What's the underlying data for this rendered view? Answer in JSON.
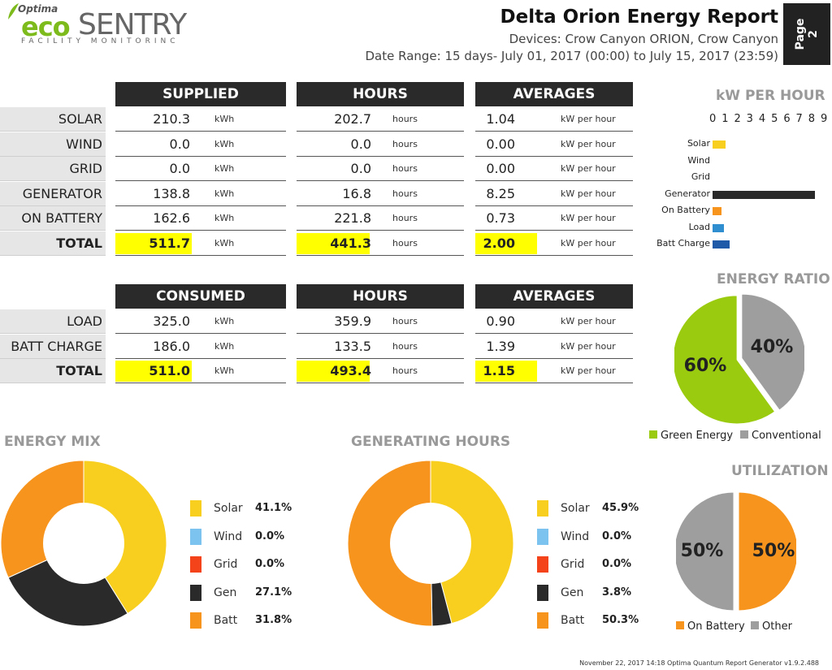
{
  "logo": {
    "optima": "Optima",
    "eco": "eco",
    "sentry": "SENTRY",
    "tagline": "FACILITY MONITORINC"
  },
  "header": {
    "title": "Delta Orion Energy Report",
    "devices": "Devices: Crow Canyon ORION, Crow Canyon",
    "date_range": "Date Range: 15 days- July 01, 2017 (00:00) to July 15, 2017 (23:59)",
    "page_label": "Page",
    "page_number": "2"
  },
  "supplied_table": {
    "headers": {
      "supplied": "SUPPLIED",
      "hours": "HOURS",
      "averages": "AVERAGES"
    },
    "units": {
      "energy": "kWh",
      "hours": "hours",
      "avg": "kW per hour"
    },
    "rows": [
      {
        "label": "SOLAR",
        "supplied": "210.3",
        "hours": "202.7",
        "avg": "1.04"
      },
      {
        "label": "WIND",
        "supplied": "0.0",
        "hours": "0.0",
        "avg": "0.00"
      },
      {
        "label": "GRID",
        "supplied": "0.0",
        "hours": "0.0",
        "avg": "0.00"
      },
      {
        "label": "GENERATOR",
        "supplied": "138.8",
        "hours": "16.8",
        "avg": "8.25"
      },
      {
        "label": "ON BATTERY",
        "supplied": "162.6",
        "hours": "221.8",
        "avg": "0.73"
      }
    ],
    "total": {
      "label": "TOTAL",
      "supplied": "511.7",
      "hours": "441.3",
      "avg": "2.00"
    }
  },
  "consumed_table": {
    "headers": {
      "consumed": "CONSUMED",
      "hours": "HOURS",
      "averages": "AVERAGES"
    },
    "rows": [
      {
        "label": "LOAD",
        "consumed": "325.0",
        "hours": "359.9",
        "avg": "0.90"
      },
      {
        "label": "BATT CHARGE",
        "consumed": "186.0",
        "hours": "133.5",
        "avg": "1.39"
      }
    ],
    "total": {
      "label": "TOTAL",
      "consumed": "511.0",
      "hours": "493.4",
      "avg": "1.15"
    }
  },
  "titles": {
    "kw_per_hour": "kW PER HOUR",
    "energy_ratio": "ENERGY RATIO",
    "energy_mix": "ENERGY MIX",
    "generating_hours": "GENERATING HOURS",
    "utilization": "UTILIZATION"
  },
  "colors": {
    "solar": "#f8cf1f",
    "wind": "#7cc3ef",
    "grid": "#f4421a",
    "gen": "#2a2a2a",
    "batt": "#f7941d",
    "load": "#2e8ed0",
    "batt_charge": "#1e5aa8",
    "green": "#9bcb0f",
    "conventional": "#9e9e9e",
    "on_battery": "#f7941d",
    "other": "#9e9e9e",
    "highlight": "#ffff00",
    "header_bg": "#2a2a2a"
  },
  "chart_data": [
    {
      "type": "bar",
      "orientation": "horizontal",
      "title": "kW PER HOUR",
      "categories": [
        "Solar",
        "Wind",
        "Grid",
        "Generator",
        "On Battery",
        "Load",
        "Batt Charge"
      ],
      "values": [
        1.04,
        0.0,
        0.0,
        8.25,
        0.73,
        0.9,
        1.39
      ],
      "colors": [
        "#f8cf1f",
        "#7cc3ef",
        "#f4421a",
        "#2a2a2a",
        "#f7941d",
        "#2e8ed0",
        "#1e5aa8"
      ],
      "ticks": [
        "0",
        "1",
        "2",
        "3",
        "4",
        "5",
        "6",
        "7",
        "8",
        "9"
      ],
      "xlim": [
        0,
        9
      ]
    },
    {
      "type": "pie",
      "title": "ENERGY RATIO",
      "labels": [
        "Green Energy",
        "Conventional"
      ],
      "values": [
        60,
        40
      ],
      "value_labels": [
        "60%",
        "40%"
      ],
      "colors": [
        "#9bcb0f",
        "#9e9e9e"
      ]
    },
    {
      "type": "pie",
      "title": "ENERGY MIX",
      "labels": [
        "Solar",
        "Wind",
        "Grid",
        "Gen",
        "Batt"
      ],
      "values": [
        41.1,
        0.0,
        0.0,
        27.1,
        31.8
      ],
      "value_labels": [
        "41.1%",
        "0.0%",
        "0.0%",
        "27.1%",
        "31.8%"
      ],
      "colors": [
        "#f8cf1f",
        "#7cc3ef",
        "#f4421a",
        "#2a2a2a",
        "#f7941d"
      ]
    },
    {
      "type": "pie",
      "title": "GENERATING HOURS",
      "labels": [
        "Solar",
        "Wind",
        "Grid",
        "Gen",
        "Batt"
      ],
      "values": [
        45.9,
        0.0,
        0.0,
        3.8,
        50.3
      ],
      "value_labels": [
        "45.9%",
        "0.0%",
        "0.0%",
        "3.8%",
        "50.3%"
      ],
      "colors": [
        "#f8cf1f",
        "#7cc3ef",
        "#f4421a",
        "#2a2a2a",
        "#f7941d"
      ]
    },
    {
      "type": "pie",
      "title": "UTILIZATION",
      "labels": [
        "On Battery",
        "Other"
      ],
      "values": [
        50,
        50
      ],
      "value_labels": [
        "50%",
        "50%"
      ],
      "colors": [
        "#f7941d",
        "#9e9e9e"
      ]
    }
  ],
  "footer": "November 22, 2017 14:18 Optima Quantum Report Generator v1.9.2.488"
}
